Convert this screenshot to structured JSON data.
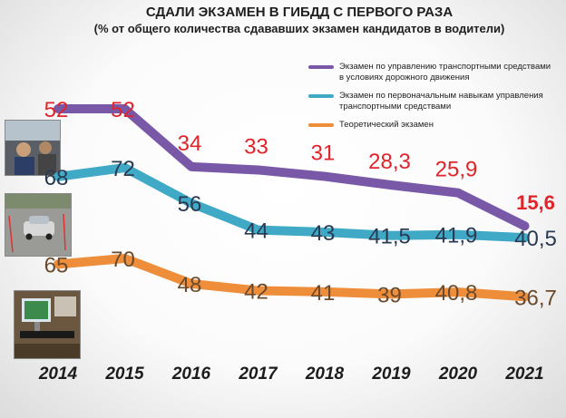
{
  "title": "СДАЛИ ЭКЗАМЕН В ГИБДД С ПЕРВОГО РАЗА",
  "subtitle": "(% от общего количества сдававших экзамен кандидатов в водители)",
  "colors": {
    "series1": "#7a58a8",
    "series2": "#3fa9c6",
    "series3": "#ee8d3a",
    "label_red": "#e0242a",
    "label_dark": "#2a3a52",
    "label_brown": "#6a4a2c"
  },
  "chart_data": {
    "type": "line",
    "x": [
      "2014",
      "2015",
      "2016",
      "2017",
      "2018",
      "2019",
      "2020",
      "2021"
    ],
    "series": [
      {
        "name": "Экзамен по управлению транспортными средствами в условиях дорожного движения",
        "values": [
          52,
          52,
          34,
          33,
          31,
          28.3,
          25.9,
          15.6
        ],
        "labels": [
          "52",
          "52",
          "34",
          "33",
          "31",
          "28,3",
          "25,9",
          "15,6"
        ]
      },
      {
        "name": "Экзамен по первоначальным навыкам управления транспортными средствами",
        "values": [
          68,
          72,
          56,
          44,
          43,
          41.5,
          41.9,
          40.5
        ],
        "labels": [
          "68",
          "72",
          "56",
          "44",
          "43",
          "41,5",
          "41,9",
          "40,5"
        ]
      },
      {
        "name": "Теоретический экзамен",
        "values": [
          65,
          70,
          48,
          42,
          41,
          39,
          40.8,
          36.7
        ],
        "labels": [
          "65",
          "70",
          "48",
          "42",
          "41",
          "39",
          "40,8",
          "36,7"
        ]
      }
    ],
    "legend_position": "top-right",
    "grid": false
  }
}
